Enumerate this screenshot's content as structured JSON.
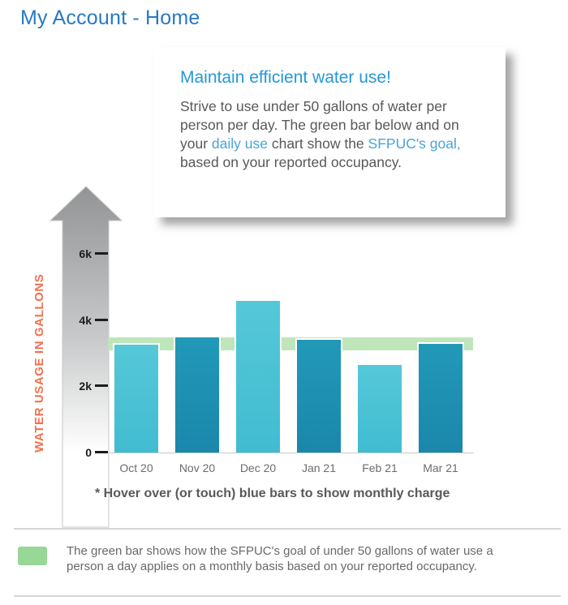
{
  "page": {
    "title": "My Account - Home"
  },
  "tooltip_card": {
    "heading": "Maintain efficient water use!",
    "body_part1": "Strive to use under 50 gallons of water per person per day. The green bar below and on your ",
    "link_daily_use": "daily use",
    "body_part2": " chart show the ",
    "link_sfpuc_goal": "SFPUC's goal,",
    "body_part3": " based on your reported occupancy."
  },
  "chart_data": {
    "type": "bar",
    "ylabel": "WATER USAGE IN GALLONS",
    "categories": [
      "Oct 20",
      "Nov 20",
      "Dec 20",
      "Jan 21",
      "Feb 21",
      "Mar 21"
    ],
    "values": [
      3310,
      3530,
      4640,
      3460,
      2700,
      3340
    ],
    "bar_styles": [
      "light",
      "dark",
      "light",
      "dark",
      "light",
      "dark"
    ],
    "ylim": [
      0,
      6200
    ],
    "yticks": [
      {
        "label": "6k",
        "value": 6000
      },
      {
        "label": "4k",
        "value": 4000
      },
      {
        "label": "2k",
        "value": 2000
      },
      {
        "label": "0",
        "value": 0
      }
    ],
    "goal_band": {
      "top_value": 3480,
      "bottom_value": 3090
    },
    "grid": "off",
    "footnote": "* Hover over (or touch) blue bars to show monthly charge"
  },
  "legend": {
    "text": "The green bar shows how the SFPUC's goal of under 50 gallons of water use a person a day applies on a monthly basis based on your reported occupancy."
  },
  "colors": {
    "title_blue": "#2779c3",
    "heading_blue": "#2598d8",
    "link_blue": "#4aa3d9",
    "body_gray": "#57585a",
    "bar_light_top": "#55c8d8",
    "bar_light_bottom": "#41bcd1",
    "bar_dark_top": "#2299b8",
    "bar_dark_bottom": "#1a87ab",
    "goal_band_green": "#bfe5bb",
    "legend_swatch_green": "#98d795",
    "axis_title_orange": "#f3704f",
    "arrow_gray_top": "#939495"
  }
}
